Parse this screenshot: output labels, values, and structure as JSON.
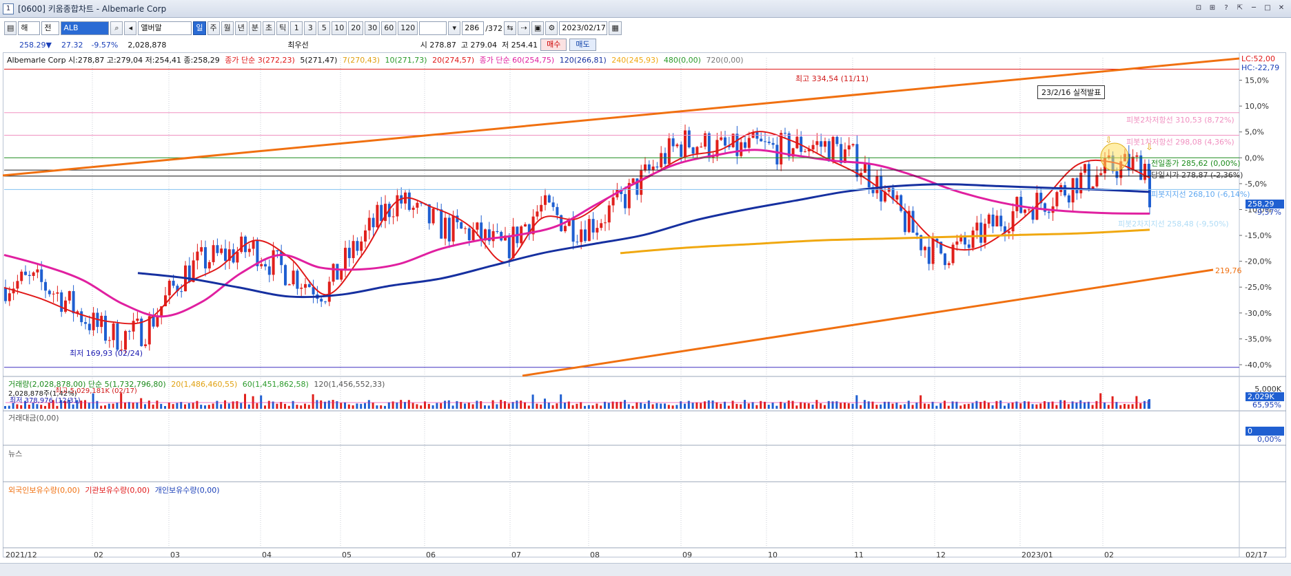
{
  "window": {
    "title": "[0600] 키움종합차트 - Albemarle Corp",
    "controls": [
      "⊡",
      "⊞",
      "?",
      "⇱",
      "─",
      "□",
      "✕"
    ]
  },
  "toolbar": {
    "market": "해",
    "type": "전",
    "symbol": "ALB",
    "name": "앨버말",
    "periods": [
      "일",
      "주",
      "월",
      "년",
      "분",
      "초",
      "틱"
    ],
    "active_period": "일",
    "intervals": [
      "1",
      "3",
      "5",
      "10",
      "20",
      "30",
      "60",
      "120"
    ],
    "count": "286",
    "total": "/372",
    "date": "2023/02/17"
  },
  "quote": {
    "price": "258.29▼",
    "change": "27.32",
    "pct": "-9.57%",
    "volume": "2,028,878",
    "name": "최우선",
    "open_label": "시",
    "open": "278.87",
    "high_label": "고",
    "high": "279.04",
    "low_label": "저",
    "low": "254.41",
    "buy": "매수",
    "sell": "매도"
  },
  "legend": {
    "main": "Albemarle Corp 시:278,87 고:279,04 저:254,41 종:258,29",
    "ma_title": "종가 단순 3(272,23)",
    "ma5": "5(271,47)",
    "ma7": "7(270,43)",
    "ma10": "10(271,73)",
    "ma20": "20(274,57)",
    "ma60_title": "종가 단순 60(254,75)",
    "ma120": "120(266,81)",
    "ma240": "240(245,93)",
    "ma480": "480(0,00)",
    "ma720": "720(0,00)"
  },
  "volume_panel": {
    "legend": "거래량(2,028,878,00) 단순 5(1,732,796,80)",
    "ma20": "20(1,486,460,55)",
    "ma60": "60(1,451,862,58)",
    "ma120": "120(1,456,552,33)",
    "max_note": "최고 5,029,181K (02/17)",
    "min_note": "최저 378,976 (12/31)",
    "vol_note": "2,028,878주(1,42%)",
    "axis_top": "5,000K",
    "box_value": "2,029K",
    "box_pct": "65,95%"
  },
  "amount_panel": {
    "legend": "거래대금(0,00)",
    "box_value": "0",
    "box_pct": "0,00%"
  },
  "news_panel": {
    "legend": "뉴스"
  },
  "holdings_panel": {
    "foreign": "외국인보유수량(0,00)",
    "institution": "기관보유수량(0,00)",
    "individual": "개인보유수량(0,00)"
  },
  "annotations": {
    "high": "최고 334,54 (11/11)",
    "low": "최저 169,93 (02/24)",
    "earnings": "23/2/16 실적발표",
    "pivot2": "피봇2차저항선 310,53 (8,72%)",
    "pivot1": "피봇1차저항선 298,08 (4,36%)",
    "prev_close": "전일종가 285,62 (0,00%)",
    "open_price": "당일시가 278,87 (-2,36%)",
    "pivot_support": "피봇지지선 268,10 (-6,14%)",
    "pivot_support2": "피봇2차지지선 258,48 (-9,50%)",
    "trend_value": "219,76",
    "lc": "LC:52,00",
    "hc": "HC:-22,79",
    "price_box": "258,29",
    "price_pct": "-9,57%"
  },
  "colors": {
    "up": "#e0201c",
    "down": "#1f5fd1",
    "ma3": "#222222",
    "ma5": "#111111",
    "ma7": "#e0a010",
    "ma10": "#2a9a2a",
    "ma20": "#e01818",
    "ma60": "#e020a0",
    "ma120": "#1630a0",
    "ma240": "#f0a810",
    "trend": "#f07010"
  },
  "chart_data": {
    "type": "line",
    "title": "",
    "xlabel": "",
    "ylabel": "",
    "x_ticks": [
      "2021/12",
      "02",
      "03",
      "04",
      "05",
      "06",
      "07",
      "08",
      "09",
      "10",
      "11",
      "12",
      "2023/01",
      "02",
      "02/17"
    ],
    "y_ticks": [
      "15,0%",
      "10,0%",
      "5,0%",
      "0,0%",
      "-5,0%",
      "-10,0%",
      "-15,0%",
      "-20,0%",
      "-25,0%",
      "-30,0%",
      "-35,0%",
      "-40,0%"
    ],
    "y_range": [
      -42,
      18
    ],
    "series": [
      {
        "name": "20",
        "values": [
          214,
          208,
          200,
          195,
          196,
          215,
          225,
          240,
          230,
          210,
          232,
          262,
          258,
          248,
          228,
          252,
          252,
          265,
          275,
          286,
          290,
          300,
          295,
          285,
          275,
          260,
          240,
          235,
          245,
          262,
          282,
          283,
          274.6
        ]
      },
      {
        "name": "60",
        "values": [
          232,
          226,
          218,
          205,
          198,
          206,
          222,
          232,
          225,
          224,
          227,
          235,
          240,
          243,
          248,
          260,
          272,
          282,
          287,
          290,
          287,
          284,
          282,
          276,
          268,
          262,
          258,
          256,
          255,
          254.8
        ]
      },
      {
        "name": "120",
        "values": [
          222,
          219,
          214,
          209,
          210,
          215,
          219,
          226,
          233,
          238,
          243,
          251,
          257,
          262,
          267,
          270,
          271,
          270,
          269,
          268,
          266.8
        ]
      },
      {
        "name": "240",
        "values": [
          233,
          236,
          238,
          240,
          241,
          242,
          243,
          244,
          245.9
        ]
      }
    ]
  }
}
